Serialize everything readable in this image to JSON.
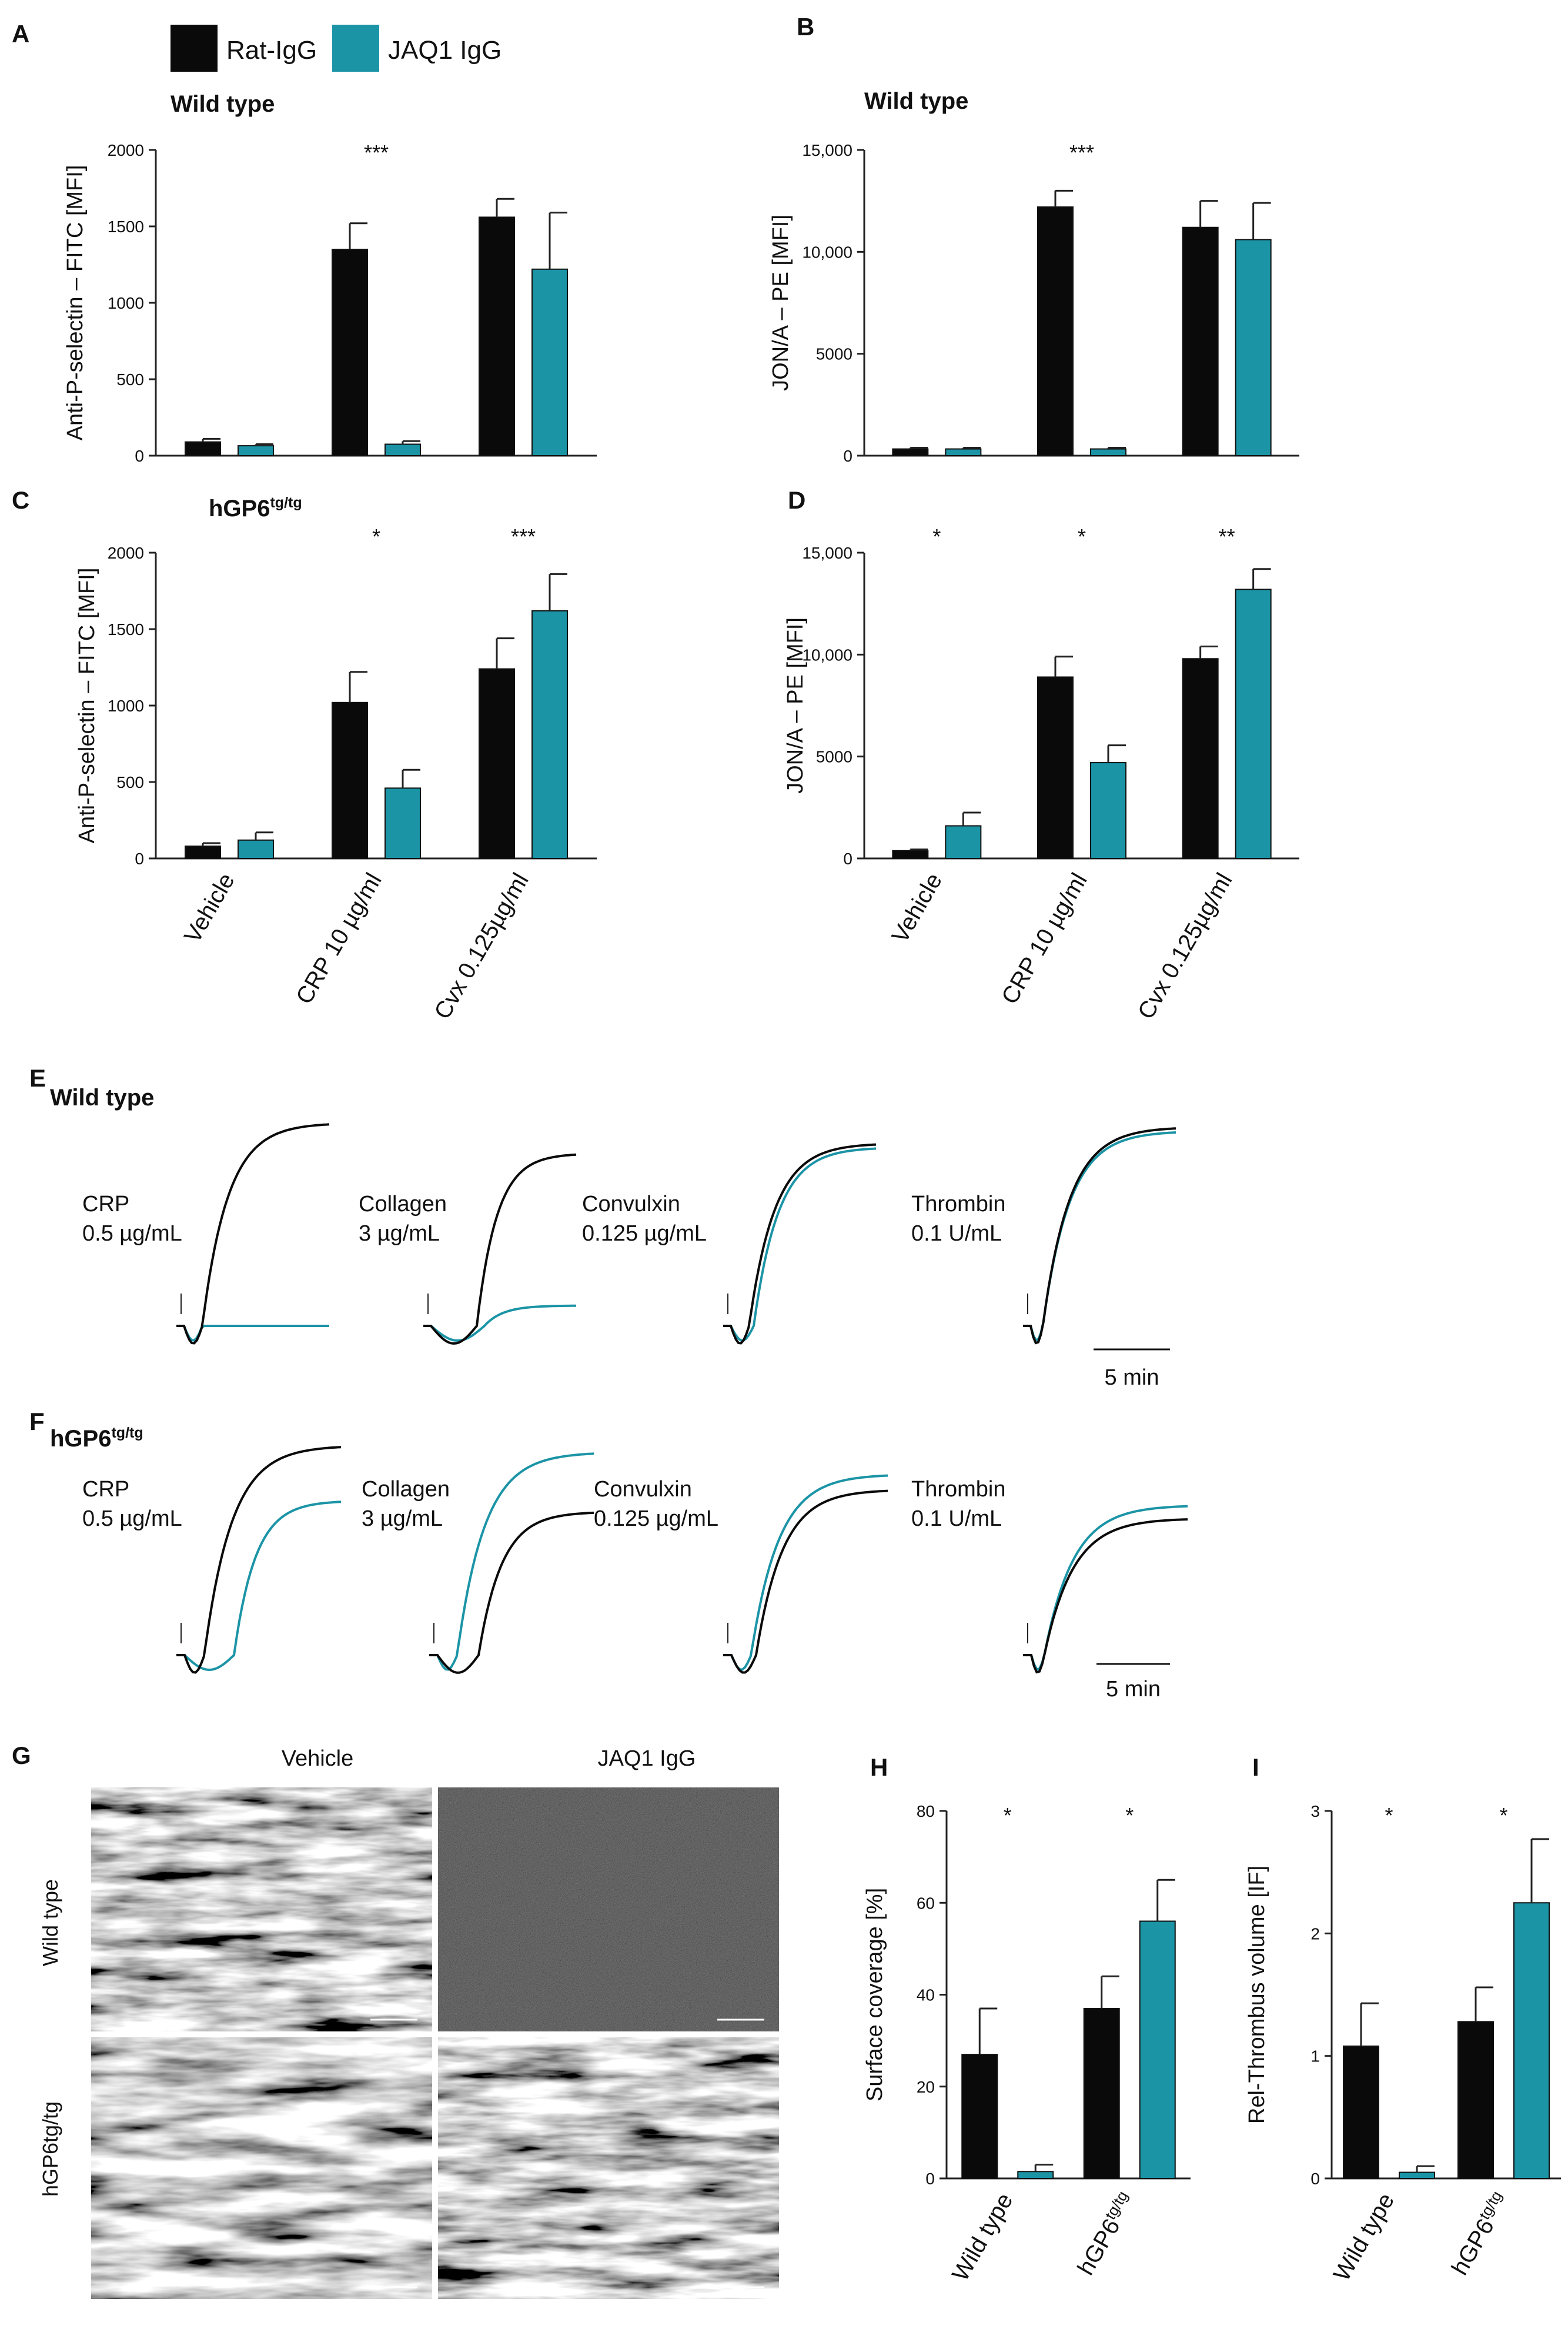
{
  "colors": {
    "control": "#0a0a0a",
    "treated": "#1b94a6",
    "axis": "#222222"
  },
  "legend": [
    {
      "label": "Rat-IgG",
      "color": "#0a0a0a"
    },
    {
      "label": "JAQ1 IgG",
      "color": "#1b94a6"
    }
  ],
  "chart_data": [
    {
      "panel": "A",
      "type": "bar",
      "subtitle": "Wild type",
      "ylabel": "Anti-P-selectin – FITC [MFI]",
      "ylim": [
        0,
        2000
      ],
      "yticks": [
        0,
        500,
        1000,
        1500,
        2000
      ],
      "ytick_labels": [
        "0",
        "500",
        "1000",
        "1500",
        "2000"
      ],
      "categories": [
        "Vehicle",
        "CRP 10 µg/ml",
        "Cvx 0.125µg/ml"
      ],
      "series": [
        {
          "name": "Rat-IgG",
          "values": [
            90,
            1350,
            1560
          ],
          "errors": [
            20,
            170,
            120
          ]
        },
        {
          "name": "JAQ1 IgG",
          "values": [
            65,
            75,
            1220
          ],
          "errors": [
            10,
            20,
            370
          ]
        }
      ],
      "significance": [
        "",
        "***",
        ""
      ]
    },
    {
      "panel": "B",
      "type": "bar",
      "subtitle": "Wild type",
      "ylabel": "JON/A – PE [MFI]",
      "ylim": [
        0,
        15000
      ],
      "yticks": [
        0,
        5000,
        10000,
        15000
      ],
      "ytick_labels": [
        "0",
        "5000",
        "10,000",
        "15,000"
      ],
      "categories": [
        "Vehicle",
        "CRP 10 µg/ml",
        "Cvx 0.125µg/ml"
      ],
      "series": [
        {
          "name": "Rat-IgG",
          "values": [
            330,
            12200,
            11200
          ],
          "errors": [
            60,
            800,
            1300
          ]
        },
        {
          "name": "JAQ1 IgG",
          "values": [
            330,
            330,
            10600
          ],
          "errors": [
            60,
            60,
            1800
          ]
        }
      ],
      "significance": [
        "",
        "***",
        ""
      ]
    },
    {
      "panel": "C",
      "type": "bar",
      "subtitle": "hGP6tg/tg",
      "ylabel": "Anti-P-selectin – FITC [MFI]",
      "ylim": [
        0,
        2000
      ],
      "yticks": [
        0,
        500,
        1000,
        1500,
        2000
      ],
      "ytick_labels": [
        "0",
        "500",
        "1000",
        "1500",
        "2000"
      ],
      "categories": [
        "Vehicle",
        "CRP 10 µg/ml",
        "Cvx 0.125µg/ml"
      ],
      "series": [
        {
          "name": "Rat-IgG",
          "values": [
            80,
            1020,
            1240
          ],
          "errors": [
            20,
            200,
            200
          ]
        },
        {
          "name": "JAQ1 IgG",
          "values": [
            120,
            460,
            1620
          ],
          "errors": [
            50,
            120,
            240
          ]
        }
      ],
      "significance": [
        "",
        "*",
        "***"
      ]
    },
    {
      "panel": "D",
      "type": "bar",
      "subtitle": "",
      "ylabel": "JON/A – PE [MFI]",
      "ylim": [
        0,
        15000
      ],
      "yticks": [
        0,
        5000,
        10000,
        15000
      ],
      "ytick_labels": [
        "0",
        "5000",
        "10,000",
        "15,000"
      ],
      "categories": [
        "Vehicle",
        "CRP 10 µg/ml",
        "Cvx 0.125µg/ml"
      ],
      "series": [
        {
          "name": "Rat-IgG",
          "values": [
            380,
            8900,
            9800
          ],
          "errors": [
            60,
            1000,
            600
          ]
        },
        {
          "name": "JAQ1 IgG",
          "values": [
            1600,
            4700,
            13200
          ],
          "errors": [
            650,
            850,
            1000
          ]
        }
      ],
      "significance": [
        "*",
        "*",
        "**"
      ]
    },
    {
      "panel": "E",
      "type": "line",
      "subtitle": "Wild type",
      "scale_bar": "5 min",
      "traces": [
        {
          "agonist": "CRP",
          "dose": "0.5 µg/mL",
          "rat_max": 100,
          "jaq_max": 0
        },
        {
          "agonist": "Collagen",
          "dose": "3 µg/mL",
          "rat_max": 85,
          "jaq_max": 10
        },
        {
          "agonist": "Convulxin",
          "dose": "0.125 µg/mL",
          "rat_max": 90,
          "jaq_max": 88
        },
        {
          "agonist": "Thrombin",
          "dose": "0.1 U/mL",
          "rat_max": 98,
          "jaq_max": 96
        }
      ]
    },
    {
      "panel": "F",
      "type": "line",
      "subtitle": "hGP6tg/tg",
      "scale_bar": "5 min",
      "traces": [
        {
          "agonist": "CRP",
          "dose": "0.5 µg/mL",
          "rat_max": 95,
          "jaq_max": 70
        },
        {
          "agonist": "Collagen",
          "dose": "3 µg/mL",
          "rat_max": 65,
          "jaq_max": 92
        },
        {
          "agonist": "Convulxin",
          "dose": "0.125 µg/mL",
          "rat_max": 75,
          "jaq_max": 82
        },
        {
          "agonist": "Thrombin",
          "dose": "0.1 U/mL",
          "rat_max": 62,
          "jaq_max": 68
        }
      ]
    },
    {
      "panel": "H",
      "type": "bar",
      "subtitle": "",
      "ylabel": "Surface coverage [%]",
      "ylim": [
        0,
        80
      ],
      "yticks": [
        0,
        20,
        40,
        60,
        80
      ],
      "ytick_labels": [
        "0",
        "20",
        "40",
        "60",
        "80"
      ],
      "categories": [
        "Wild type",
        "hGP6tg/tg"
      ],
      "series": [
        {
          "name": "Rat-IgG",
          "values": [
            27,
            37
          ],
          "errors": [
            10,
            7
          ]
        },
        {
          "name": "JAQ1 IgG",
          "values": [
            1.5,
            56
          ],
          "errors": [
            1.5,
            9
          ]
        }
      ],
      "significance": [
        "*",
        "*"
      ]
    },
    {
      "panel": "I",
      "type": "bar",
      "subtitle": "",
      "ylabel": "Rel-Thrombus volume [IF]",
      "ylim": [
        0,
        3
      ],
      "yticks": [
        0,
        1,
        2,
        3
      ],
      "ytick_labels": [
        "0",
        "1",
        "2",
        "3"
      ],
      "categories": [
        "Wild type",
        "hGP6tg/tg"
      ],
      "series": [
        {
          "name": "Rat-IgG",
          "values": [
            1.08,
            1.28
          ],
          "errors": [
            0.35,
            0.28
          ]
        },
        {
          "name": "JAQ1 IgG",
          "values": [
            0.05,
            2.25
          ],
          "errors": [
            0.05,
            0.52
          ]
        }
      ],
      "significance": [
        "*",
        "*"
      ]
    }
  ],
  "panel_g": {
    "panel": "G",
    "columns": [
      "Vehicle",
      "JAQ1 IgG"
    ],
    "rows": [
      "Wild type",
      "hGP6tg/tg"
    ]
  }
}
